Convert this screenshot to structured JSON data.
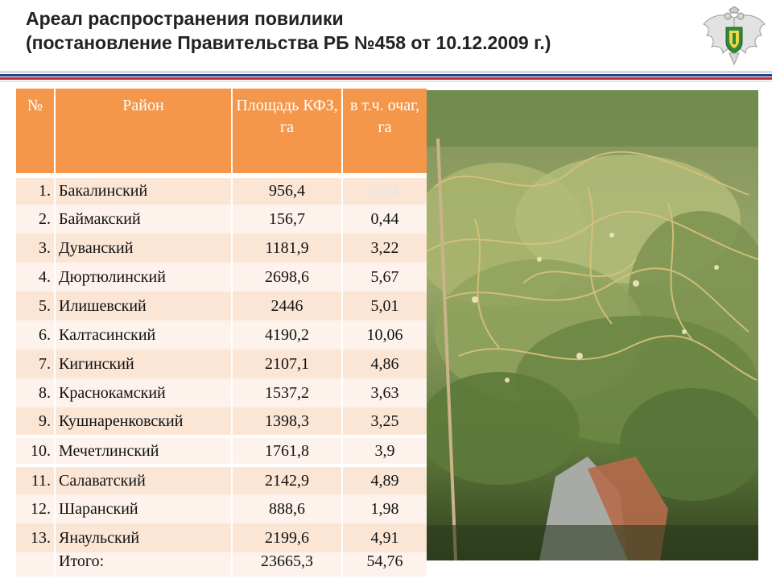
{
  "slide": {
    "title_line1": "Ареал распространения повилики",
    "title_line2": "(постановление Правительства РБ №458 от 10.12.2009 г.)"
  },
  "table": {
    "headers": [
      "№",
      "Район",
      "Площадь КФЗ, га",
      "в т.ч. очаг, га"
    ],
    "rows": [
      {
        "n": "1.",
        "district": "Бакалинский",
        "area": "956,4",
        "focus": "2,94"
      },
      {
        "n": "2.",
        "district": "Баймакский",
        "area": "156,7",
        "focus": "0,44"
      },
      {
        "n": "3.",
        "district": "Дуванский",
        "area": "1181,9",
        "focus": "3,22"
      },
      {
        "n": "4.",
        "district": "Дюртюлинский",
        "area": "2698,6",
        "focus": "5,67"
      },
      {
        "n": "5.",
        "district": "Илишевский",
        "area": "2446",
        "focus": "5,01"
      },
      {
        "n": "6.",
        "district": "Калтасинский",
        "area": "4190,2",
        "focus": "10,06"
      },
      {
        "n": "7.",
        "district": "Кигинский",
        "area": "2107,1",
        "focus": "4,86"
      },
      {
        "n": "8.",
        "district": "Краснокамский",
        "area": "1537,2",
        "focus": "3,63"
      },
      {
        "n": "9.",
        "district": "Кушнаренковский",
        "area": "1398,3",
        "focus": "3,25"
      },
      {
        "n": "10.",
        "district": "Мечетлинский",
        "area": "1761,8",
        "focus": "3,9"
      },
      {
        "n": "11.",
        "district": "Салаватский",
        "area": "2142,9",
        "focus": "4,89"
      },
      {
        "n": "12.",
        "district": "Шаранский",
        "area": "888,6",
        "focus": "1,98"
      },
      {
        "n": "13.",
        "district": "Янаульский",
        "area": "2199,6",
        "focus": "4,91"
      }
    ],
    "total": {
      "label": "Итого:",
      "area": "23665,3",
      "focus": "54,76"
    }
  },
  "colors": {
    "header_bg": "#f5974a",
    "row_bg": "#fbe6d6",
    "row_alt_bg": "#fdf3ec",
    "stripe_blue": "#1f3f8f",
    "stripe_red": "#c8262c"
  },
  "icons": {
    "emblem": "double-headed-eagle-emblem-icon"
  }
}
